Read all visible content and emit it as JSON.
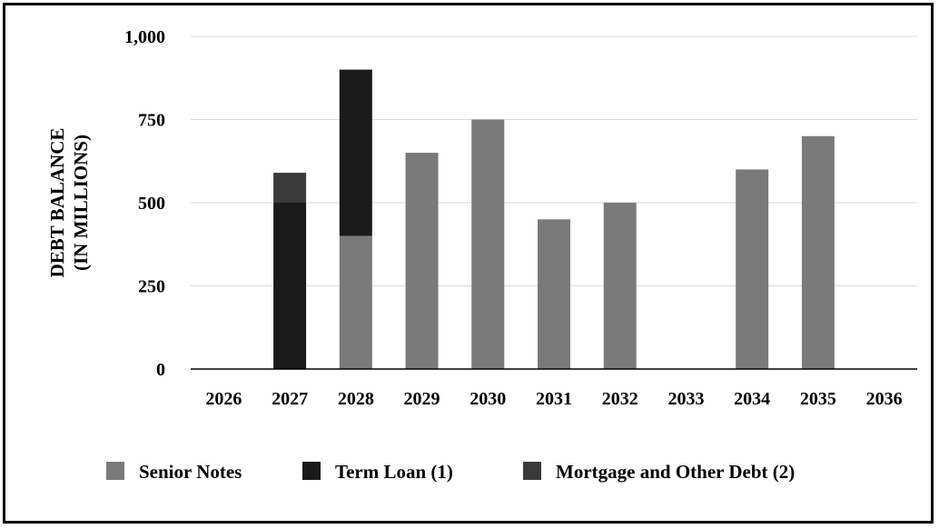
{
  "chart_data": {
    "type": "bar",
    "stacked": true,
    "categories": [
      "2026",
      "2027",
      "2028",
      "2029",
      "2030",
      "2031",
      "2032",
      "2033",
      "2034",
      "2035",
      "2036"
    ],
    "series": [
      {
        "name": "Senior Notes",
        "color": "#7a7a7a",
        "values": [
          0,
          0,
          400,
          650,
          750,
          450,
          500,
          0,
          600,
          700,
          0
        ]
      },
      {
        "name": "Term Loan (1)",
        "color": "#1a1a1a",
        "values": [
          0,
          500,
          500,
          0,
          0,
          0,
          0,
          0,
          0,
          0,
          0
        ]
      },
      {
        "name": "Mortgage and Other Debt (2)",
        "color": "#3a3a3a",
        "values": [
          0,
          90,
          0,
          0,
          0,
          0,
          0,
          0,
          0,
          0,
          0
        ]
      }
    ],
    "ylabel_lines": [
      "DEBT BALANCE",
      "(IN MILLIONS)"
    ],
    "ylim": [
      0,
      1000
    ],
    "yticks": [
      0,
      250,
      500,
      750,
      1000
    ],
    "ytick_labels": [
      "0",
      "250",
      "500",
      "750",
      "1,000"
    ],
    "grid": true,
    "legend_position": "bottom"
  }
}
